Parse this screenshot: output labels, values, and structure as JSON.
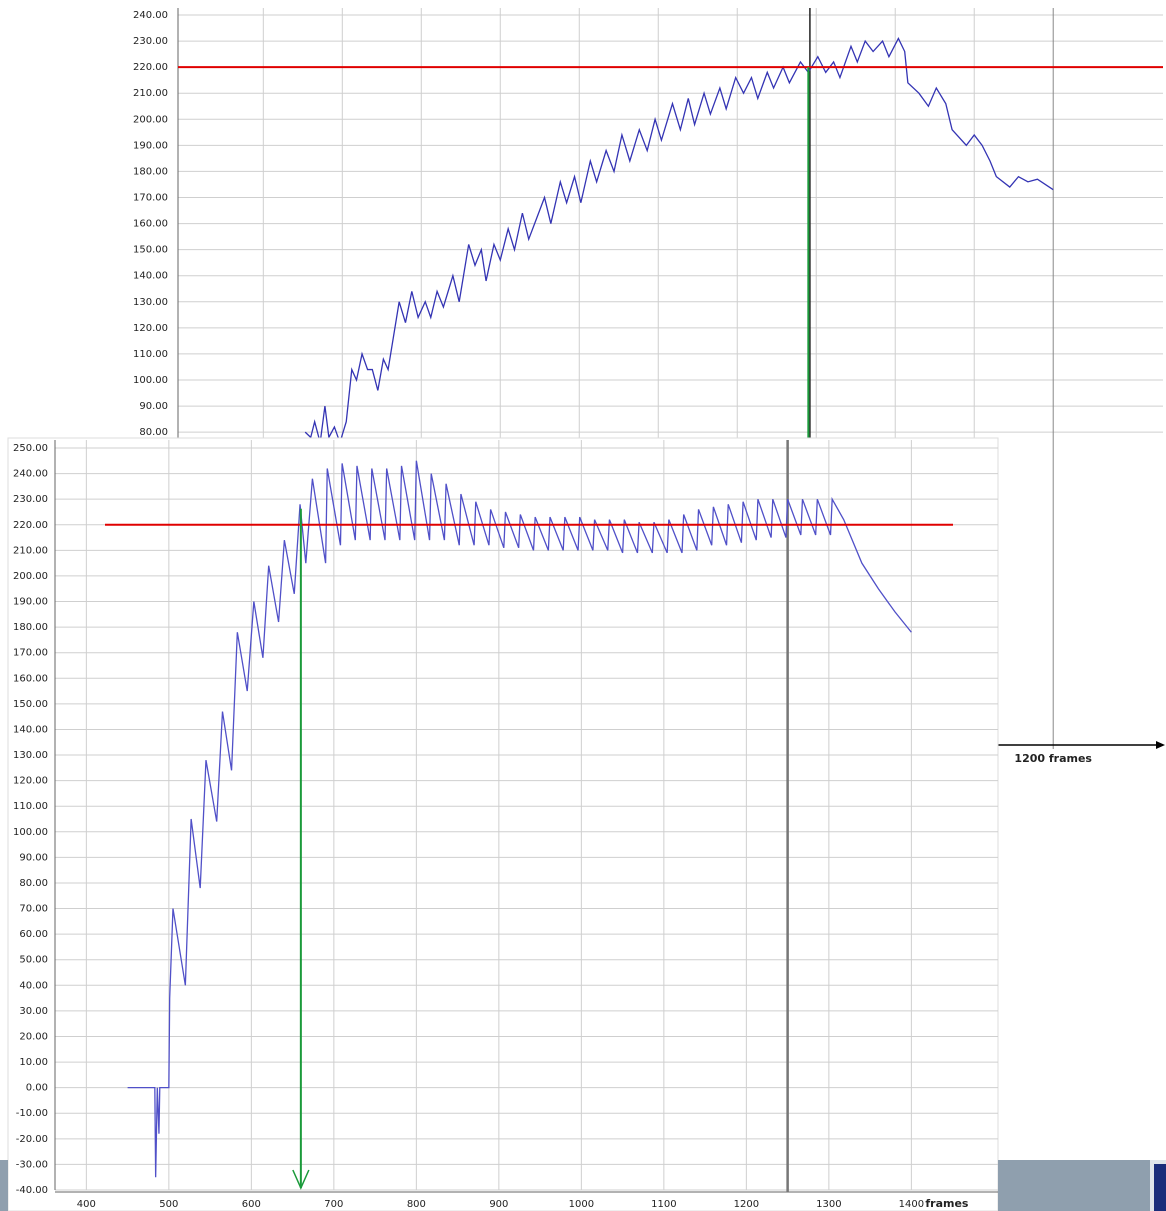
{
  "chart_data": [
    {
      "type": "line",
      "x": [
        253,
        260,
        265,
        272,
        278,
        283,
        290,
        297,
        305,
        312,
        318,
        325,
        332,
        338,
        345,
        352,
        358,
        372,
        380,
        388,
        396,
        405,
        412,
        420,
        428,
        440,
        448,
        460,
        468,
        476,
        482,
        492,
        500,
        510,
        518,
        528,
        536,
        546,
        556,
        564,
        576,
        584,
        594,
        602,
        614,
        622,
        634,
        644,
        654,
        664,
        676,
        686,
        696,
        704,
        718,
        728,
        738,
        746,
        758,
        766,
        778,
        786,
        798,
        808,
        818,
        826,
        838,
        846,
        858,
        866,
        880,
        890,
        902,
        912,
        922,
        930,
        944,
        952,
        962,
        972,
        984,
        992,
        1004,
        1012,
        1016,
        1030,
        1042,
        1052,
        1064,
        1072,
        1090,
        1100,
        1110,
        1120,
        1128,
        1145,
        1156,
        1168,
        1180,
        1200
      ],
      "series": [
        {
          "color": "#3434b4",
          "values": [
            80,
            78,
            84,
            76,
            90,
            78,
            82,
            76,
            84,
            104,
            100,
            110,
            104,
            104,
            96,
            108,
            104,
            130,
            122,
            134,
            124,
            130,
            124,
            134,
            128,
            140,
            130,
            152,
            144,
            150,
            138,
            152,
            146,
            158,
            150,
            164,
            154,
            162,
            170,
            160,
            176,
            168,
            178,
            168,
            184,
            176,
            188,
            180,
            194,
            184,
            196,
            188,
            200,
            192,
            206,
            196,
            208,
            198,
            210,
            202,
            212,
            204,
            216,
            210,
            216,
            208,
            218,
            212,
            220,
            214,
            222,
            218,
            224,
            218,
            222,
            216,
            228,
            222,
            230,
            226,
            230,
            224,
            231,
            226,
            214,
            210,
            205,
            212,
            206,
            196,
            190,
            194,
            190,
            184,
            178,
            174,
            178,
            176,
            177,
            173
          ]
        }
      ],
      "xlim": [
        92,
        1339
      ],
      "ylim": [
        -40,
        240
      ],
      "xgrid": [
        200,
        300,
        400,
        500,
        600,
        700,
        800,
        900,
        1000,
        1100
      ],
      "xticks": [
        {
          "value": 1200,
          "label": "1200 frames"
        }
      ],
      "yticks": [
        {
          "value": 80,
          "label": "80.00"
        },
        {
          "value": 90,
          "label": "90.00"
        },
        {
          "value": 100,
          "label": "100.00"
        },
        {
          "value": 110,
          "label": "110.00"
        },
        {
          "value": 120,
          "label": "120.00"
        },
        {
          "value": 130,
          "label": "130.00"
        },
        {
          "value": 140,
          "label": "140.00"
        },
        {
          "value": 150,
          "label": "150.00"
        },
        {
          "value": 160,
          "label": "160.00"
        },
        {
          "value": 170,
          "label": "170.00"
        },
        {
          "value": 180,
          "label": "180.00"
        },
        {
          "value": 190,
          "label": "190.00"
        },
        {
          "value": 200,
          "label": "200.00"
        },
        {
          "value": 210,
          "label": "210.00"
        },
        {
          "value": 220,
          "label": "220.00"
        },
        {
          "value": 230,
          "label": "230.00"
        },
        {
          "value": 240,
          "label": "240.00"
        }
      ],
      "threshold": 220,
      "threshold_color": "#e00000",
      "marker_x": 890,
      "marker_color": "#1a9a3a",
      "cursor_x": 892,
      "cursor_color": "#222222",
      "grid": true
    },
    {
      "type": "line",
      "x": [
        450,
        483,
        484,
        486,
        488,
        489,
        500,
        501,
        505,
        520,
        527,
        538,
        545,
        558,
        565,
        576,
        583,
        595,
        603,
        614,
        621,
        633,
        640,
        652,
        659,
        666,
        674,
        690,
        692,
        708,
        710,
        726,
        728,
        744,
        746,
        762,
        764,
        780,
        782,
        798,
        800,
        816,
        818,
        834,
        836,
        852,
        854,
        870,
        872,
        888,
        890,
        906,
        908,
        924,
        926,
        942,
        944,
        960,
        962,
        978,
        980,
        996,
        998,
        1014,
        1016,
        1032,
        1034,
        1050,
        1052,
        1068,
        1070,
        1086,
        1088,
        1104,
        1106,
        1122,
        1124,
        1140,
        1142,
        1158,
        1160,
        1176,
        1178,
        1194,
        1196,
        1212,
        1214,
        1230,
        1232,
        1248,
        1250,
        1266,
        1268,
        1284,
        1286,
        1302,
        1304,
        1318,
        1340,
        1360,
        1380,
        1400
      ],
      "series": [
        {
          "color": "#5050c8",
          "values": [
            0,
            0,
            -35,
            0,
            -18,
            0,
            0,
            35,
            70,
            40,
            105,
            78,
            128,
            104,
            147,
            124,
            178,
            155,
            190,
            168,
            204,
            182,
            214,
            193,
            228,
            205,
            238,
            205,
            242,
            212,
            244,
            214,
            243,
            214,
            242,
            214,
            242,
            214,
            243,
            214,
            245,
            214,
            240,
            214,
            236,
            212,
            232,
            212,
            229,
            212,
            226,
            211,
            225,
            211,
            224,
            210,
            223,
            210,
            223,
            210,
            223,
            210,
            223,
            210,
            222,
            210,
            222,
            209,
            222,
            209,
            221,
            209,
            221,
            209,
            222,
            209,
            224,
            210,
            226,
            212,
            227,
            212,
            228,
            213,
            229,
            214,
            230,
            215,
            230,
            215,
            230,
            216,
            230,
            216,
            230,
            216,
            230,
            222,
            205,
            195,
            186,
            178
          ]
        }
      ],
      "xlim": [
        362,
        1505
      ],
      "ylim": [
        -40,
        250
      ],
      "xticks": [
        400,
        500,
        600,
        700,
        800,
        900,
        1000,
        1100,
        1200,
        1300,
        1400
      ],
      "x_unit": "frames",
      "yticks": [
        {
          "value": -40,
          "label": "-40.00"
        },
        {
          "value": -30,
          "label": "-30.00"
        },
        {
          "value": -20,
          "label": "-20.00"
        },
        {
          "value": -10,
          "label": "-10.00"
        },
        {
          "value": 0,
          "label": "0.00"
        },
        {
          "value": 10,
          "label": "10.00"
        },
        {
          "value": 20,
          "label": "20.00"
        },
        {
          "value": 30,
          "label": "30.00"
        },
        {
          "value": 40,
          "label": "40.00"
        },
        {
          "value": 50,
          "label": "50.00"
        },
        {
          "value": 60,
          "label": "60.00"
        },
        {
          "value": 70,
          "label": "70.00"
        },
        {
          "value": 80,
          "label": "80.00"
        },
        {
          "value": 90,
          "label": "90.00"
        },
        {
          "value": 100,
          "label": "100.00"
        },
        {
          "value": 110,
          "label": "110.00"
        },
        {
          "value": 120,
          "label": "120.00"
        },
        {
          "value": 130,
          "label": "130.00"
        },
        {
          "value": 140,
          "label": "140.00"
        },
        {
          "value": 150,
          "label": "150.00"
        },
        {
          "value": 160,
          "label": "160.00"
        },
        {
          "value": 170,
          "label": "170.00"
        },
        {
          "value": 180,
          "label": "180.00"
        },
        {
          "value": 190,
          "label": "190.00"
        },
        {
          "value": 200,
          "label": "200.00"
        },
        {
          "value": 210,
          "label": "210.00"
        },
        {
          "value": 220,
          "label": "220.00"
        },
        {
          "value": 230,
          "label": "230.00"
        },
        {
          "value": 240,
          "label": "240.00"
        },
        {
          "value": 250,
          "label": "250.00"
        }
      ],
      "threshold": 220,
      "threshold_color": "#e00000",
      "marker_x": 660,
      "marker_color": "#1a9a3a",
      "cursor_x": 1250,
      "cursor_color": "#777777",
      "grid": true
    }
  ]
}
